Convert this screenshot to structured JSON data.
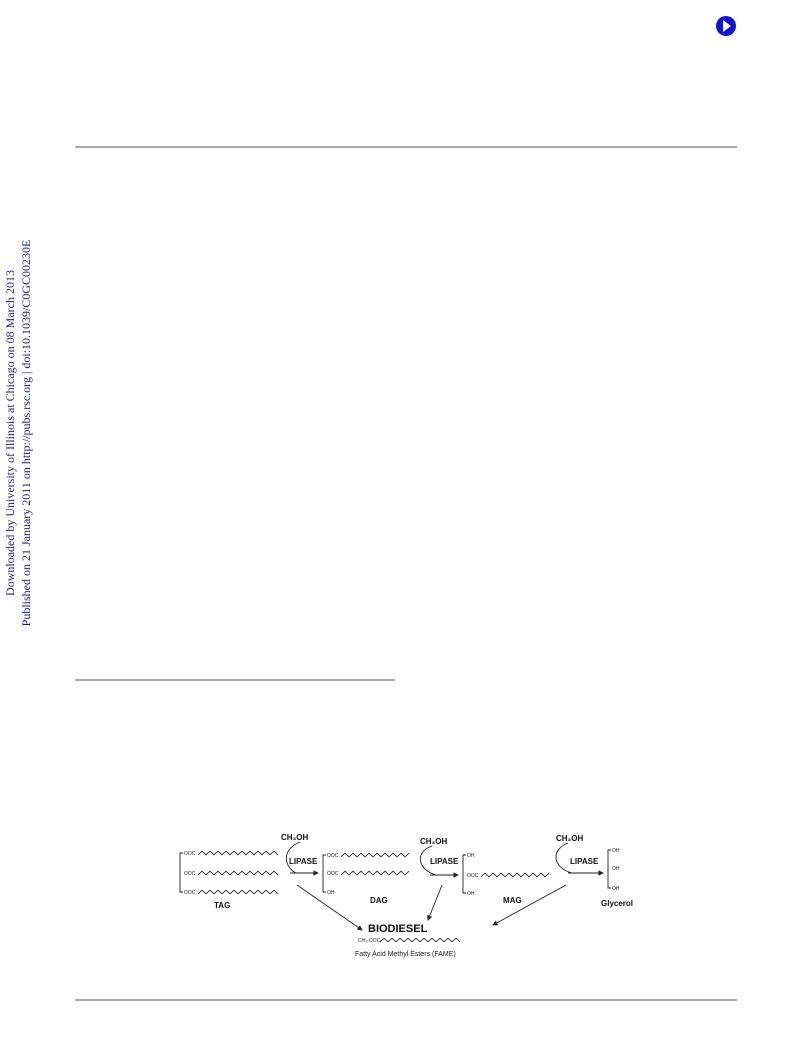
{
  "sidebar": {
    "lines": [
      "Downloaded by University of Illinois at Chicago on 08 March 2013",
      "Published on 21 January 2011 on http://pubs.rsc.org | doi:10.1039/C0GC00230E"
    ]
  },
  "scheme": {
    "reagents": [
      "CH₃OH",
      "CH₃OH",
      "CH₃OH"
    ],
    "catalysts": [
      "LIPASE",
      "LIPASE",
      "LIPASE"
    ],
    "structures": [
      {
        "label": "TAG",
        "groups": [
          "OOC",
          "OOC",
          "OOC"
        ]
      },
      {
        "label": "DAG",
        "groups": [
          "OOC",
          "OOC",
          "OH"
        ]
      },
      {
        "label": "MAG",
        "groups": [
          "OH",
          "OOC",
          "OH"
        ]
      },
      {
        "label": "Glycerol",
        "groups": [
          "OH",
          "OH",
          "OH"
        ]
      }
    ],
    "product": "BIODIESEL",
    "product_group": "CH₃-OOC",
    "product_name": "Fatty Acid Methyl Esters (FAME)"
  }
}
